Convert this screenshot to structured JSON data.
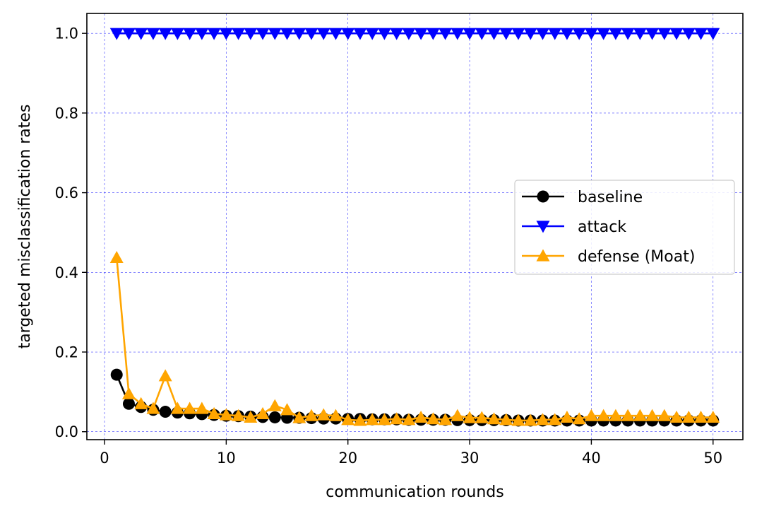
{
  "chart_data": {
    "type": "line",
    "title": "",
    "xlabel": "communication rounds",
    "ylabel": "targeted misclassification rates",
    "xlim": [
      -1.45,
      52.45
    ],
    "ylim": [
      -0.02,
      1.05
    ],
    "xticks": [
      0,
      10,
      20,
      30,
      40,
      50
    ],
    "yticks": [
      0.0,
      0.2,
      0.4,
      0.6,
      0.8,
      1.0
    ],
    "xtick_labels": [
      "0",
      "10",
      "20",
      "30",
      "40",
      "50"
    ],
    "ytick_labels": [
      "0.0",
      "0.2",
      "0.4",
      "0.6",
      "0.8",
      "1.0"
    ],
    "grid": true,
    "grid_color": "#0000ff",
    "legend_position": "center-right",
    "x": [
      1,
      2,
      3,
      4,
      5,
      6,
      7,
      8,
      9,
      10,
      11,
      12,
      13,
      14,
      15,
      16,
      17,
      18,
      19,
      20,
      21,
      22,
      23,
      24,
      25,
      26,
      27,
      28,
      29,
      30,
      31,
      32,
      33,
      34,
      35,
      36,
      37,
      38,
      39,
      40,
      41,
      42,
      43,
      44,
      45,
      46,
      47,
      48,
      49,
      50
    ],
    "series": [
      {
        "name": "baseline",
        "color": "#000000",
        "marker": "circle",
        "values": [
          0.143,
          0.07,
          0.062,
          0.055,
          0.05,
          0.048,
          0.046,
          0.044,
          0.042,
          0.04,
          0.039,
          0.038,
          0.037,
          0.036,
          0.035,
          0.035,
          0.034,
          0.033,
          0.033,
          0.032,
          0.032,
          0.031,
          0.031,
          0.031,
          0.03,
          0.03,
          0.03,
          0.03,
          0.029,
          0.029,
          0.029,
          0.029,
          0.029,
          0.028,
          0.028,
          0.028,
          0.028,
          0.028,
          0.028,
          0.028,
          0.028,
          0.028,
          0.028,
          0.028,
          0.028,
          0.028,
          0.028,
          0.028,
          0.028,
          0.028
        ]
      },
      {
        "name": "attack",
        "color": "#0000ff",
        "marker": "triangle-down",
        "values": [
          1.0,
          1.0,
          1.0,
          1.0,
          1.0,
          1.0,
          1.0,
          1.0,
          1.0,
          1.0,
          1.0,
          1.0,
          1.0,
          1.0,
          1.0,
          1.0,
          1.0,
          1.0,
          1.0,
          1.0,
          1.0,
          1.0,
          1.0,
          1.0,
          1.0,
          1.0,
          1.0,
          1.0,
          1.0,
          1.0,
          1.0,
          1.0,
          1.0,
          1.0,
          1.0,
          1.0,
          1.0,
          1.0,
          1.0,
          1.0,
          1.0,
          1.0,
          1.0,
          1.0,
          1.0,
          1.0,
          1.0,
          1.0,
          1.0,
          1.0
        ]
      },
      {
        "name": "defense (Moat)",
        "color": "#ffa500",
        "marker": "triangle-up",
        "values": [
          0.437,
          0.095,
          0.07,
          0.058,
          0.14,
          0.058,
          0.058,
          0.058,
          0.045,
          0.042,
          0.04,
          0.036,
          0.045,
          0.065,
          0.055,
          0.035,
          0.04,
          0.042,
          0.04,
          0.03,
          0.028,
          0.03,
          0.03,
          0.032,
          0.03,
          0.036,
          0.032,
          0.03,
          0.04,
          0.035,
          0.035,
          0.032,
          0.03,
          0.028,
          0.028,
          0.03,
          0.03,
          0.036,
          0.032,
          0.04,
          0.04,
          0.04,
          0.04,
          0.04,
          0.04,
          0.04,
          0.036,
          0.036,
          0.036,
          0.036
        ]
      }
    ]
  }
}
